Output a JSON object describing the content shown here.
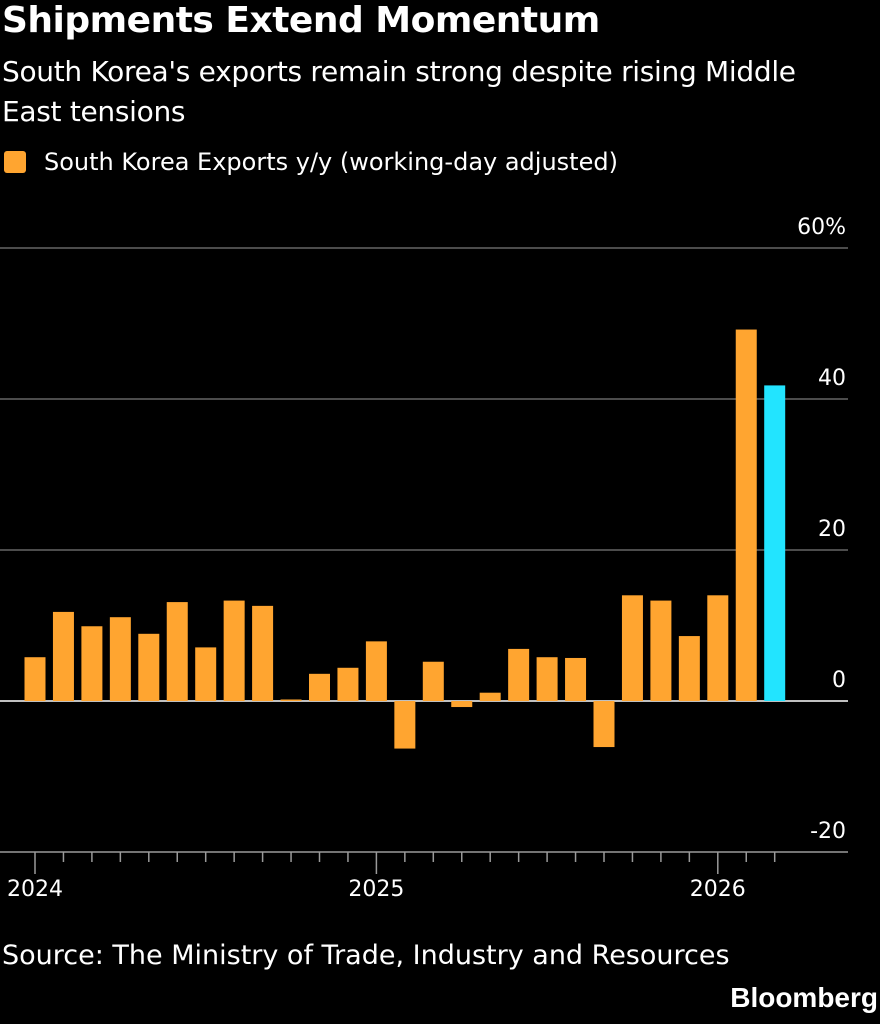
{
  "chart_data": {
    "type": "bar",
    "title": "Shipments Extend Momentum",
    "subtitle": "South Korea's exports remain strong despite rising Middle East tensions",
    "legend": [
      {
        "label": "South Korea Exports y/y (working-day adjusted)",
        "color": "#ffa530"
      }
    ],
    "y_unit_suffix": "%",
    "ylim": [
      -20,
      60
    ],
    "yticks": [
      {
        "value": 60,
        "label": "60%"
      },
      {
        "value": 40,
        "label": "40"
      },
      {
        "value": 20,
        "label": "20"
      },
      {
        "value": 0,
        "label": "0"
      },
      {
        "value": -20,
        "label": "-20"
      }
    ],
    "x_tick_labels": [
      {
        "label": "2024",
        "index": 0
      },
      {
        "label": "2025",
        "index": 12
      },
      {
        "label": "2026",
        "index": 24
      }
    ],
    "categories": [
      "Jan 2024",
      "Feb 2024",
      "Mar 2024",
      "Apr 2024",
      "May 2024",
      "Jun 2024",
      "Jul 2024",
      "Aug 2024",
      "Sep 2024",
      "Oct 2024",
      "Nov 2024",
      "Dec 2024",
      "Jan 2025",
      "Feb 2025",
      "Mar 2025",
      "Apr 2025",
      "May 2025",
      "Jun 2025",
      "Jul 2025",
      "Aug 2025",
      "Sep 2025",
      "Oct 2025",
      "Nov 2025",
      "Dec 2025",
      "Jan 2026",
      "Feb 2026",
      "Mar 2026"
    ],
    "values": [
      5.8,
      11.8,
      9.9,
      11.1,
      8.9,
      13.1,
      7.1,
      13.3,
      12.6,
      0.2,
      3.6,
      4.4,
      7.9,
      -6.3,
      5.2,
      -0.8,
      1.1,
      6.9,
      5.8,
      5.7,
      -6.1,
      14.0,
      13.3,
      8.6,
      14.0,
      49.2,
      41.8
    ],
    "highlight_color": "#22e4ff",
    "highlight_index": 26
  },
  "source": "Source: The Ministry of Trade, Industry and Resources",
  "brand": "Bloomberg",
  "colors": {
    "bar": "#ffa530",
    "highlight": "#22e4ff",
    "grid": "#7a7a7a",
    "background": "#000000"
  }
}
